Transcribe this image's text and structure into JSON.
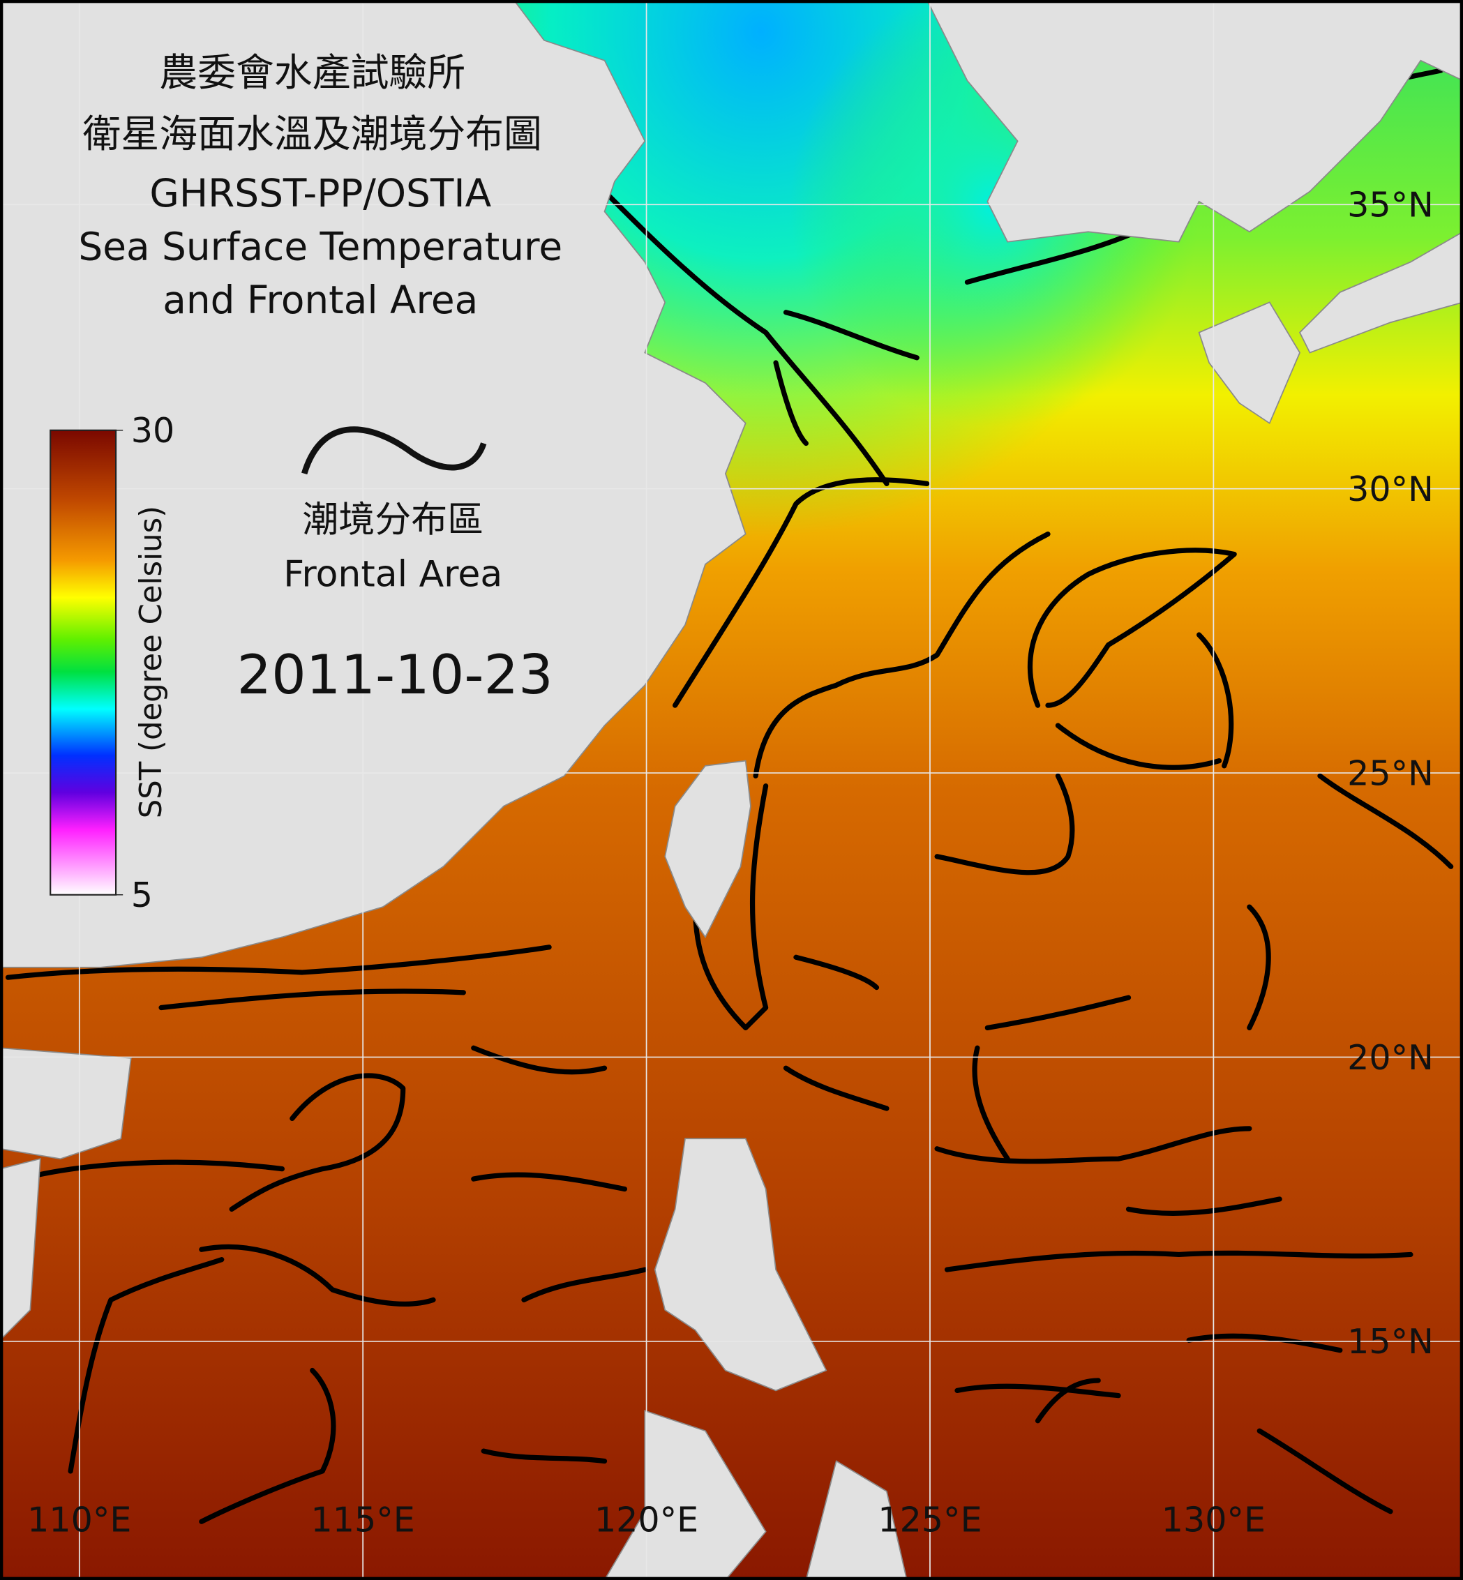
{
  "map": {
    "title": [
      "農委會水產試驗所",
      "衛星海面水溫及潮境分布圖",
      "GHRSST-PP/OSTIA",
      "Sea Surface Temperature",
      "and Frontal Area"
    ],
    "legend": {
      "label_zh": "潮境分布區",
      "label_en": "Frontal Area"
    },
    "date": "2011-10-23",
    "colorbar": {
      "label": "SST (degree Celsius)",
      "range": [
        5,
        30
      ],
      "ticks": [
        30,
        5
      ]
    },
    "lonlim": [
      108.6,
      134.4
    ],
    "latlim": [
      38.6,
      10.8
    ],
    "lon_ticks": [
      {
        "value": 110,
        "label": "110°E"
      },
      {
        "value": 115,
        "label": "115°E"
      },
      {
        "value": 120,
        "label": "120°E"
      },
      {
        "value": 125,
        "label": "125°E"
      },
      {
        "value": 130,
        "label": "130°E"
      }
    ],
    "lat_ticks": [
      {
        "value": 35,
        "label": "35°N"
      },
      {
        "value": 30,
        "label": "30°N"
      },
      {
        "value": 25,
        "label": "25°N"
      },
      {
        "value": 20,
        "label": "20°N"
      },
      {
        "value": 15,
        "label": "15°N"
      }
    ]
  }
}
